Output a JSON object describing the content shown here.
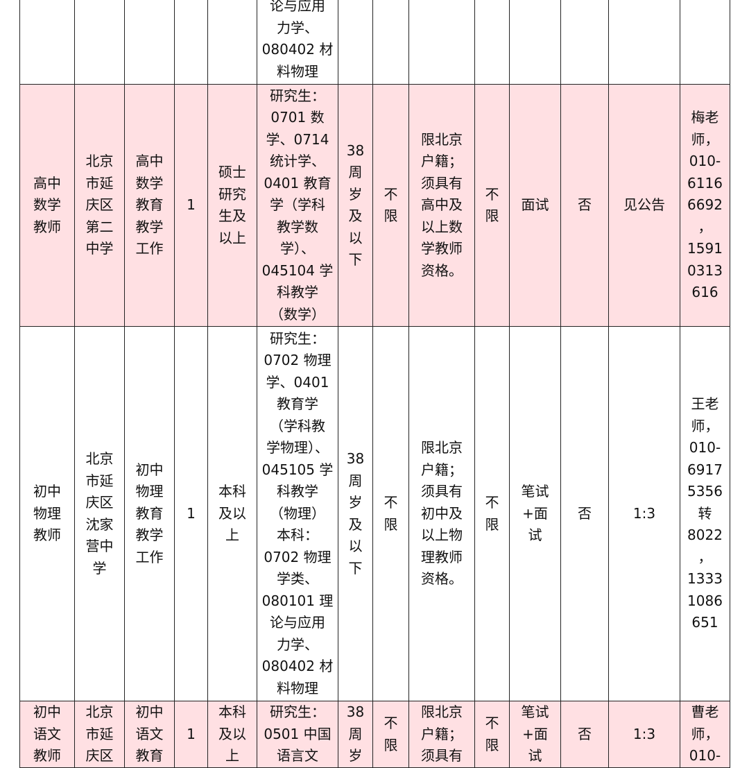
{
  "rows": [
    {
      "highlight": false,
      "cells": [
        "",
        "",
        "",
        "",
        "",
        "论与应用\n力学、\n080402 材\n料物理",
        "",
        "",
        "",
        "",
        "",
        "",
        "",
        ""
      ]
    },
    {
      "highlight": true,
      "cells": [
        "高中\n数学\n教师",
        "北京\n市延\n庆区\n第二\n中学",
        "高中\n数学\n教育\n教学\n工作",
        "1",
        "硕士\n研究\n生及\n以上",
        "研究生：\n0701 数\n学、0714\n统计学、\n0401 教育\n学（学科\n教学数\n学）、\n045104 学\n科教学\n（数学）",
        "38\n周\n岁\n及\n以\n下",
        "不\n限",
        "限北京\n户籍；\n须具有\n高中及\n以上数\n学教师\n资格。",
        "不\n限",
        "面试",
        "否",
        "见公告",
        "梅老\n师，\n010-\n6116\n6692\n，\n1591\n0313\n616"
      ]
    },
    {
      "highlight": false,
      "cells": [
        "初中\n物理\n教师",
        "北京\n市延\n庆区\n沈家\n营中\n学",
        "初中\n物理\n教育\n教学\n工作",
        "1",
        "本科\n及以\n上",
        "研究生：\n0702 物理\n学、0401\n教育学\n（学科教\n学物理）、\n045105 学\n科教学\n（物理）\n本科：\n0702 物理\n学类、\n080101 理\n论与应用\n力学、\n080402 材\n料物理",
        "38\n周\n岁\n及\n以\n下",
        "不\n限",
        "限北京\n户籍；\n须具有\n初中及\n以上物\n理教师\n资格。",
        "不\n限",
        "笔试\n+面\n试",
        "否",
        "1:3",
        "王老\n师，\n010-\n6917\n5356\n转\n8022\n，\n1333\n1086\n651"
      ]
    },
    {
      "highlight": true,
      "cells": [
        "初中\n语文\n教师",
        "北京\n市延\n庆区",
        "初中\n语文\n教育",
        "1",
        "本科\n及以\n上",
        "研究生：\n0501 中国\n语言文",
        "38\n周\n岁",
        "不\n限",
        "限北京\n户籍；\n须具有",
        "不\n限",
        "笔试\n+面\n试",
        "否",
        "1:3",
        "曹老\n师，\n010-"
      ]
    }
  ],
  "colors": {
    "highlight_row": "#ffe0e3",
    "border": "#222222"
  }
}
